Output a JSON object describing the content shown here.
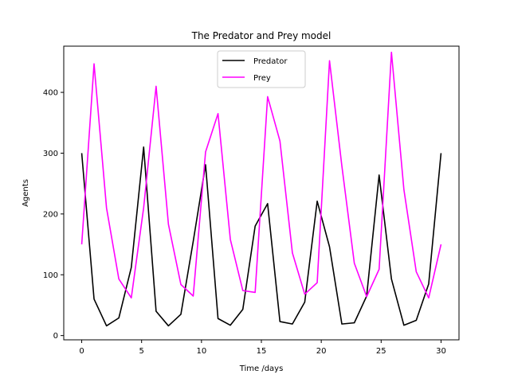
{
  "chart_data": {
    "type": "line",
    "title": "The Predator and Prey model",
    "xlabel": "Time /days",
    "ylabel": "Agents",
    "xlim": [
      -1.5,
      31.5
    ],
    "ylim": [
      -7,
      476
    ],
    "xticks": [
      0,
      5,
      10,
      15,
      20,
      25,
      30
    ],
    "yticks": [
      0,
      100,
      200,
      300,
      400
    ],
    "xtick_labels": [
      "0",
      "5",
      "10",
      "15",
      "20",
      "25",
      "30"
    ],
    "ytick_labels": [
      "0",
      "100",
      "200",
      "300",
      "400"
    ],
    "grid": false,
    "legend_position": "top-center",
    "x": [
      0,
      1.03,
      2.07,
      3.1,
      4.14,
      5.17,
      6.21,
      7.24,
      8.28,
      9.31,
      10.34,
      11.38,
      12.41,
      13.45,
      14.48,
      15.52,
      16.55,
      17.59,
      18.62,
      19.66,
      20.69,
      21.72,
      22.76,
      23.79,
      24.83,
      25.86,
      26.9,
      27.93,
      28.97,
      30
    ],
    "series": [
      {
        "name": "Predator",
        "color": "#000000",
        "values": [
          300,
          60,
          16,
          29,
          112,
          310,
          40,
          16,
          35,
          155,
          281,
          28,
          17,
          43,
          180,
          217,
          23,
          19,
          55,
          221,
          146,
          19,
          21,
          65,
          264,
          93,
          17,
          25,
          85,
          300
        ]
      },
      {
        "name": "Prey",
        "color": "#ff00ff",
        "values": [
          150,
          447,
          210,
          93,
          62,
          210,
          410,
          183,
          84,
          65,
          302,
          365,
          158,
          74,
          71,
          393,
          320,
          136,
          68,
          87,
          452,
          279,
          119,
          64,
          109,
          466,
          240,
          105,
          62,
          150
        ]
      }
    ]
  }
}
